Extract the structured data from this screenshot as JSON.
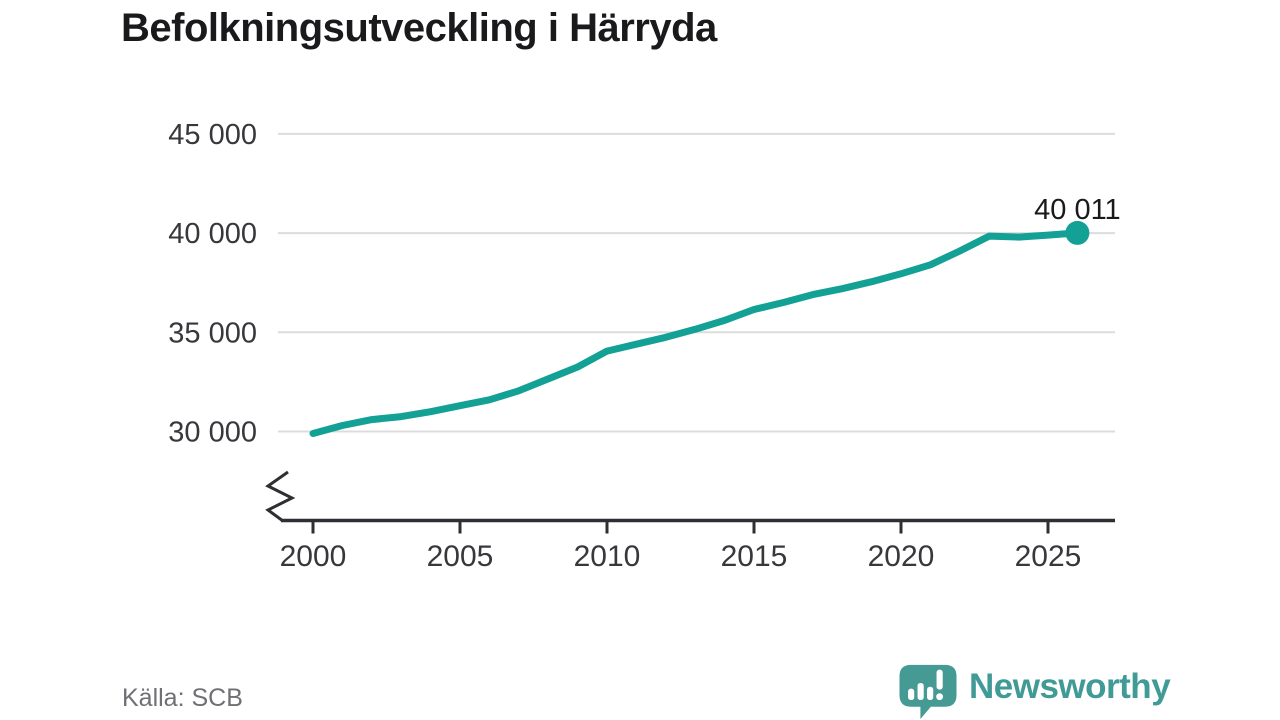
{
  "title": "Befolkningsutveckling i Härryda",
  "source": "Källa: SCB",
  "branding": {
    "name": "Newsworthy",
    "logo_color": "#469a94",
    "text_color": "#409a96"
  },
  "chart_data": {
    "type": "line",
    "title": "Befolkningsutveckling i Härryda",
    "xlabel": "",
    "ylabel": "",
    "x": [
      2000,
      2001,
      2002,
      2003,
      2004,
      2005,
      2006,
      2007,
      2008,
      2009,
      2010,
      2011,
      2012,
      2013,
      2014,
      2015,
      2016,
      2017,
      2018,
      2019,
      2020,
      2021,
      2022,
      2023,
      2024,
      2025,
      2026
    ],
    "series": [
      {
        "name": "Befolkning",
        "values": [
          29900,
          30300,
          30600,
          30750,
          31000,
          31300,
          31600,
          32050,
          32650,
          33250,
          34050,
          34400,
          34750,
          35150,
          35600,
          36150,
          36500,
          36900,
          37200,
          37550,
          37950,
          38400,
          39100,
          39850,
          39800,
          39900,
          40011
        ]
      }
    ],
    "end_label": "40 011",
    "end_value": 40011,
    "yticks": {
      "values": [
        30000,
        35000,
        40000,
        45000
      ],
      "labels": [
        "30 000",
        "35 000",
        "40 000",
        "45 000"
      ]
    },
    "xticks": {
      "values": [
        2000,
        2005,
        2010,
        2015,
        2020,
        2025
      ],
      "labels": [
        "2000",
        "2005",
        "2010",
        "2015",
        "2020",
        "2025"
      ]
    },
    "ylim_display": [
      30000,
      45000
    ],
    "axis_break": true,
    "grid": true,
    "legend": "none",
    "colors": {
      "line": "#14a195",
      "grid": "#dcdcdc",
      "axis": "#2f2f33",
      "tick_label": "#38383c",
      "end_label": "#1a1a1c"
    }
  }
}
